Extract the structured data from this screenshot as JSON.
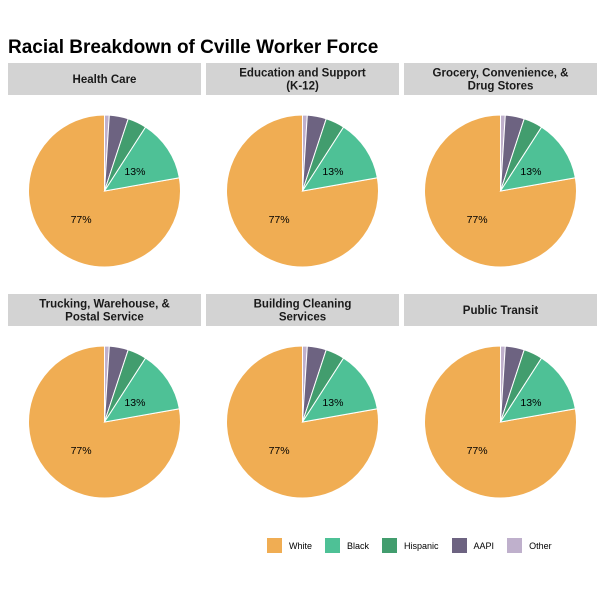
{
  "chart_data": {
    "type": "pie",
    "title": "Racial Breakdown of Cville Worker Force",
    "legend_position": "bottom-right",
    "categories": [
      "White",
      "Black",
      "Hispanic",
      "AAPI",
      "Other"
    ],
    "colors": [
      "#f0ad53",
      "#4ec196",
      "#429d6e",
      "#6d6381",
      "#bfb0cc"
    ],
    "panels": [
      {
        "name": "Health Care",
        "values": [
          77,
          13,
          4,
          4,
          1
        ],
        "labels": [
          "77%",
          "13%"
        ]
      },
      {
        "name": "Education and Support\n(K-12)",
        "values": [
          77,
          13,
          4,
          4,
          1
        ],
        "labels": [
          "77%",
          "13%"
        ]
      },
      {
        "name": "Grocery, Convenience, &\nDrug Stores",
        "values": [
          77,
          13,
          4,
          4,
          1
        ],
        "labels": [
          "77%",
          "13%"
        ]
      },
      {
        "name": "Trucking, Warehouse, &\nPostal Service",
        "values": [
          77,
          13,
          4,
          4,
          1
        ],
        "labels": [
          "77%",
          "13%"
        ]
      },
      {
        "name": "Building Cleaning\nServices",
        "values": [
          77,
          13,
          4,
          4,
          1
        ],
        "labels": [
          "77%",
          "13%"
        ]
      },
      {
        "name": "Public Transit",
        "values": [
          77,
          13,
          4,
          4,
          1
        ],
        "labels": [
          "77%",
          "13%"
        ]
      }
    ]
  }
}
